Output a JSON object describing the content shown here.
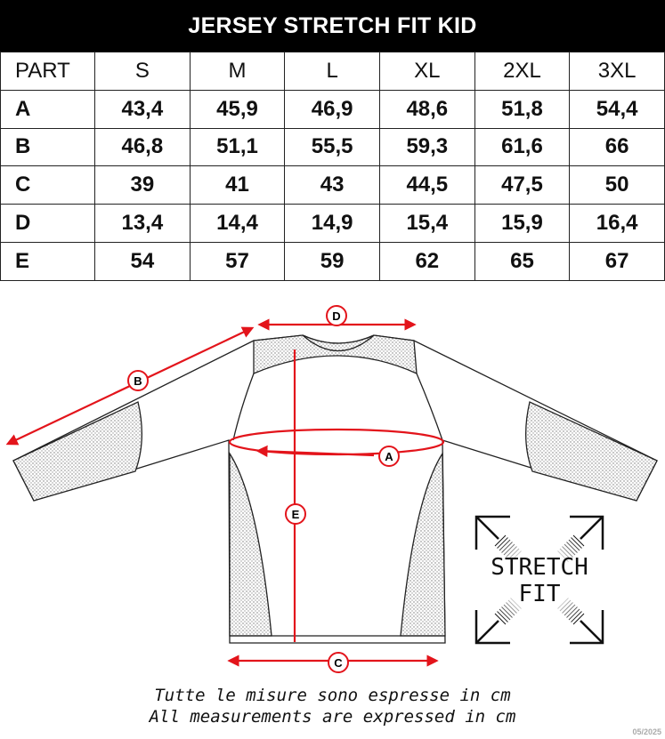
{
  "title": "JERSEY STRETCH FIT KID",
  "table": {
    "headers": [
      "PART",
      "S",
      "M",
      "L",
      "XL",
      "2XL",
      "3XL"
    ],
    "rows": [
      [
        "A",
        "43,4",
        "45,9",
        "46,9",
        "48,6",
        "51,8",
        "54,4"
      ],
      [
        "B",
        "46,8",
        "51,1",
        "55,5",
        "59,3",
        "61,6",
        "66"
      ],
      [
        "C",
        "39",
        "41",
        "43",
        "44,5",
        "47,5",
        "50"
      ],
      [
        "D",
        "13,4",
        "14,4",
        "14,9",
        "15,4",
        "15,9",
        "16,4"
      ],
      [
        "E",
        "54",
        "57",
        "59",
        "62",
        "65",
        "67"
      ]
    ]
  },
  "diagram": {
    "labels": {
      "a": "A",
      "b": "B",
      "c": "C",
      "d": "D",
      "e": "E"
    },
    "accent_color": "#e3141b",
    "badge_line1": "STRETCH",
    "badge_line2": "FIT"
  },
  "notes": {
    "italian": "Tutte le misure sono espresse in cm",
    "english": "All measurements are expressed in cm"
  },
  "date": "05/2025"
}
